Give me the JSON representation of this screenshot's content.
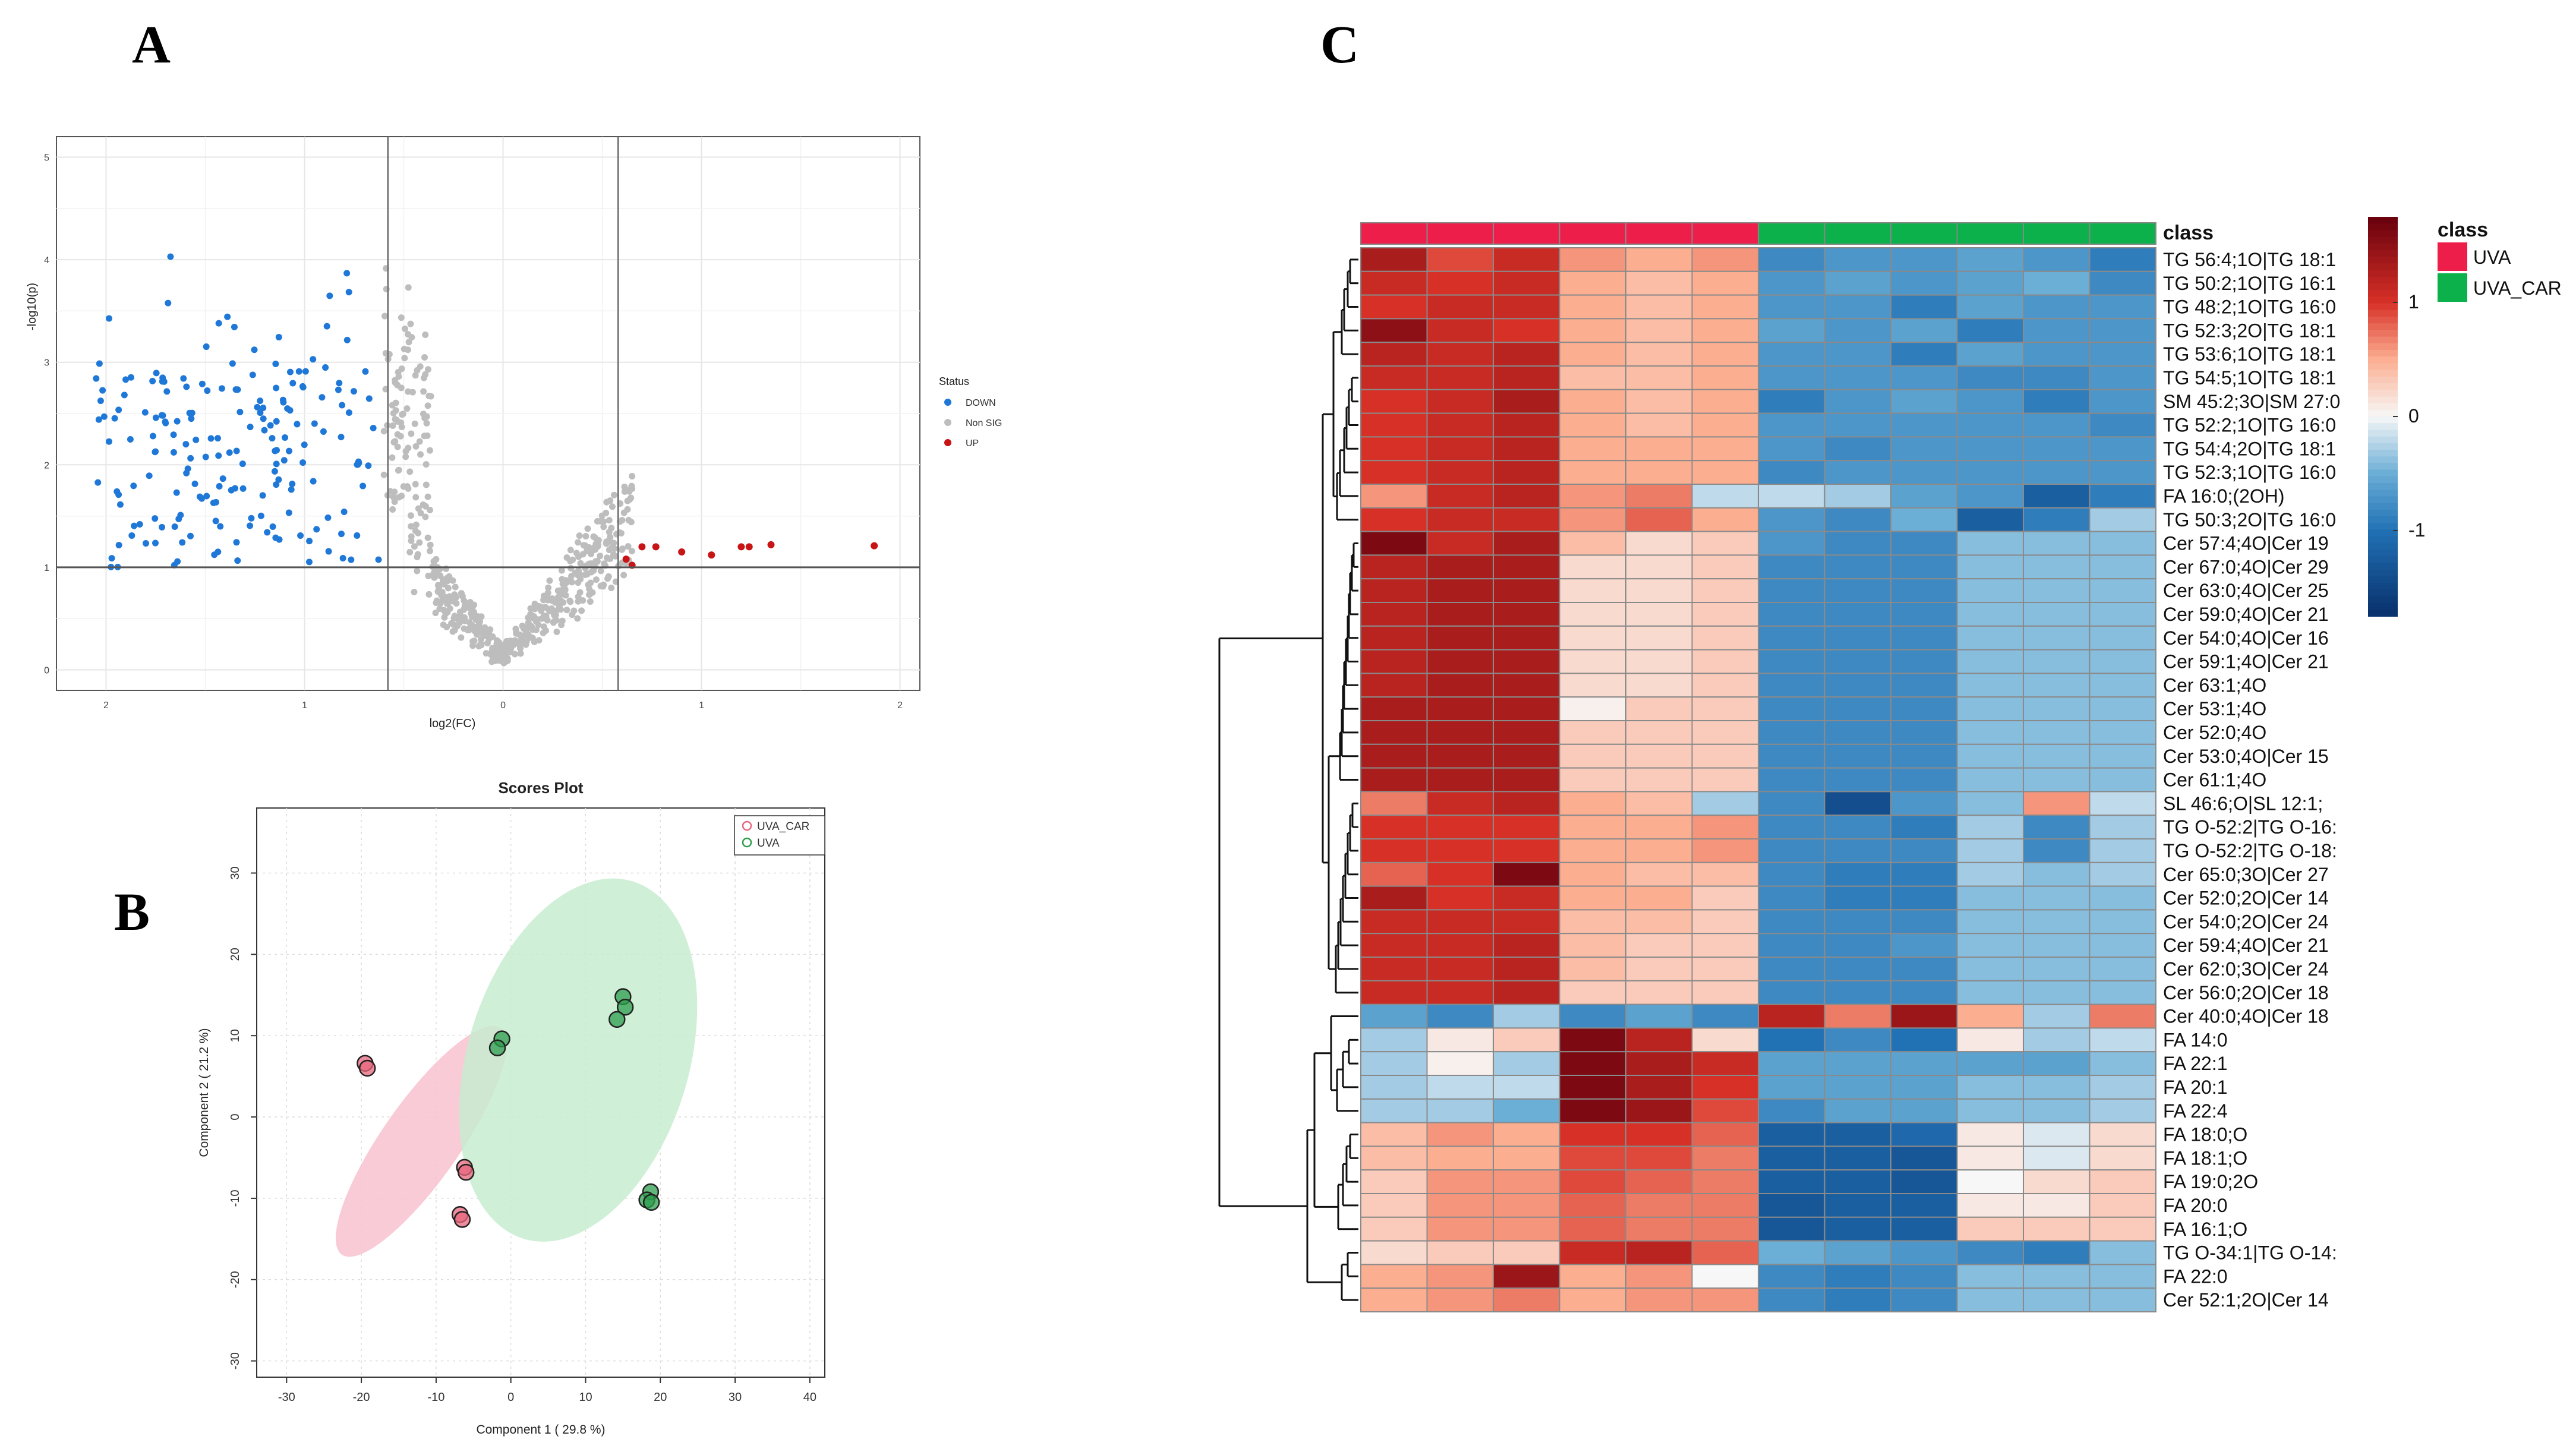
{
  "panels": {
    "a": "A",
    "b": "B",
    "c": "C"
  },
  "chart_data": [
    {
      "type": "scatter",
      "name": "volcano",
      "xlabel": "log2(FC)",
      "ylabel": "-log10(p)",
      "xlim": [
        -2.25,
        2.1
      ],
      "ylim": [
        -0.2,
        5.2
      ],
      "x_ticks": [
        -2,
        -1,
        0,
        1,
        2
      ],
      "x_tick_labels": [
        "2",
        "1",
        "0",
        "1",
        "2"
      ],
      "y_ticks": [
        0,
        1,
        2,
        3,
        4,
        5
      ],
      "y_tick_labels": [
        "0",
        "1",
        "2",
        "3",
        "4",
        "5"
      ],
      "thresholds": {
        "fc_low": -0.58,
        "fc_high": 0.58,
        "p": 1
      },
      "legend": {
        "title": "Status",
        "entries": [
          "DOWN",
          "Non SIG",
          "UP"
        ]
      },
      "colors": {
        "DOWN": "#1f78d8",
        "Non SIG": "#bdbdbd",
        "UP": "#c81414"
      },
      "up_points": [
        [
          0.62,
          1.08
        ],
        [
          0.65,
          1.02
        ],
        [
          0.7,
          1.2
        ],
        [
          0.77,
          1.2
        ],
        [
          0.9,
          1.15
        ],
        [
          1.05,
          1.12
        ],
        [
          1.2,
          1.2
        ],
        [
          1.24,
          1.2
        ],
        [
          1.35,
          1.22
        ],
        [
          1.87,
          1.21
        ]
      ],
      "down_seed": 7,
      "nonsig_seed": 11
    },
    {
      "type": "scatter",
      "name": "scores",
      "title": "Scores Plot",
      "xlabel": "Component 1 ( 29.8 %)",
      "ylabel": "Component 2 ( 21.2 %)",
      "xlim": [
        -34,
        42
      ],
      "ylim": [
        -32,
        38
      ],
      "x_ticks": [
        -30,
        -20,
        -10,
        0,
        10,
        20,
        30,
        40
      ],
      "y_ticks": [
        -30,
        -20,
        -10,
        0,
        10,
        20,
        30
      ],
      "legend": [
        "UVA_CAR",
        "UVA"
      ],
      "colors": {
        "UVA_CAR": "#e8677e",
        "UVA": "#2e9d4e",
        "UVA_CAR_fill": "#f8c2cf",
        "UVA_fill": "#c8ecd0"
      },
      "series": [
        {
          "name": "UVA_CAR",
          "points": [
            [
              -19.5,
              6.6
            ],
            [
              -19.2,
              6.0
            ],
            [
              -6.2,
              -6.2
            ],
            [
              -6.0,
              -6.8
            ],
            [
              -6.8,
              -12.0
            ],
            [
              -6.5,
              -12.6
            ]
          ]
        },
        {
          "name": "UVA",
          "points": [
            [
              -1.2,
              9.6
            ],
            [
              -1.8,
              8.5
            ],
            [
              15,
              14.8
            ],
            [
              15.3,
              13.5
            ],
            [
              14.2,
              12
            ],
            [
              18.7,
              -9.2
            ],
            [
              18.2,
              -10.2
            ],
            [
              18.8,
              -10.5
            ]
          ]
        }
      ],
      "ellipses": [
        {
          "name": "UVA_CAR",
          "cx": -12,
          "cy": -3,
          "rx": 18.5,
          "ry": 5.2,
          "angle_deg": -55
        },
        {
          "name": "UVA",
          "cx": 9,
          "cy": 7,
          "rx": 25,
          "ry": 14.8,
          "angle_deg": -73
        }
      ]
    },
    {
      "type": "heatmap",
      "name": "lipid-heatmap",
      "class_label": "class",
      "classes": [
        "UVA",
        "UVA",
        "UVA",
        "UVA",
        "UVA",
        "UVA",
        "UVA_CAR",
        "UVA_CAR",
        "UVA_CAR",
        "UVA_CAR",
        "UVA_CAR",
        "UVA_CAR"
      ],
      "class_colors": {
        "UVA": "#ee1e4b",
        "UVA_CAR": "#0db14b"
      },
      "legend": {
        "title": "class",
        "entries": [
          "UVA",
          "UVA_CAR"
        ]
      },
      "colorbar": {
        "ticks": [
          1,
          0,
          -1
        ],
        "tick_labels": [
          "1",
          "0",
          "-1"
        ],
        "range": [
          -1.75,
          1.75
        ]
      },
      "rows": [
        "TG 56:4;1O|TG 18:1",
        "TG 50:2;1O|TG 16:1",
        "TG 48:2;1O|TG 16:0",
        "TG 52:3;2O|TG 18:1",
        "TG 53:6;1O|TG 18:1",
        "TG 54:5;1O|TG 18:1",
        "SM 45:2;3O|SM 27:0",
        "TG 52:2;1O|TG 16:0",
        "TG 54:4;2O|TG 18:1",
        "TG 52:3;1O|TG 16:0",
        "FA 16:0;(2OH)",
        "TG 50:3;2O|TG 16:0",
        "Cer 57:4;4O|Cer 19",
        "Cer 67:0;4O|Cer 29",
        "Cer 63:0;4O|Cer 25",
        "Cer 59:0;4O|Cer 21",
        "Cer 54:0;4O|Cer 16",
        "Cer 59:1;4O|Cer 21",
        "Cer 63:1;4O",
        "Cer 53:1;4O",
        "Cer 52:0;4O",
        "Cer 53:0;4O|Cer 15",
        "Cer 61:1;4O",
        "SL 46:6;O|SL 12:1;",
        "TG O-52:2|TG O-16:",
        "TG O-52:2|TG O-18:",
        "Cer 65:0;3O|Cer 27",
        "Cer 52:0;2O|Cer 14",
        "Cer 54:0;2O|Cer 24",
        "Cer 59:4;4O|Cer 21",
        "Cer 62:0;3O|Cer 24",
        "Cer 56:0;2O|Cer 18",
        "Cer 40:0;4O|Cer 18",
        "FA 14:0",
        "FA 22:1",
        "FA 20:1",
        "FA 22:4",
        "FA 18:0;O",
        "FA 18:1;O",
        "FA 19:0;2O",
        "FA 20:0",
        "FA 16:1;O",
        "TG O-34:1|TG O-14:",
        "FA 22:0",
        "Cer 52:1;2O|Cer 14"
      ],
      "values": [
        [
          1.3,
          0.9,
          1.1,
          0.6,
          0.5,
          0.6,
          -0.8,
          -0.7,
          -0.7,
          -0.6,
          -0.7,
          -0.9
        ],
        [
          1.1,
          1.0,
          1.1,
          0.5,
          0.4,
          0.5,
          -0.7,
          -0.6,
          -0.7,
          -0.6,
          -0.5,
          -0.8
        ],
        [
          1.0,
          1.1,
          1.1,
          0.5,
          0.4,
          0.5,
          -0.7,
          -0.7,
          -0.9,
          -0.6,
          -0.7,
          -0.7
        ],
        [
          1.5,
          1.1,
          1.0,
          0.5,
          0.4,
          0.5,
          -0.6,
          -0.7,
          -0.6,
          -0.9,
          -0.7,
          -0.7
        ],
        [
          1.2,
          1.1,
          1.2,
          0.5,
          0.4,
          0.5,
          -0.7,
          -0.7,
          -0.9,
          -0.6,
          -0.7,
          -0.7
        ],
        [
          1.1,
          1.1,
          1.2,
          0.4,
          0.4,
          0.5,
          -0.7,
          -0.7,
          -0.7,
          -0.8,
          -0.8,
          -0.7
        ],
        [
          1.0,
          1.1,
          1.3,
          0.5,
          0.4,
          0.5,
          -0.9,
          -0.7,
          -0.6,
          -0.7,
          -0.9,
          -0.7
        ],
        [
          1.0,
          1.1,
          1.2,
          0.5,
          0.4,
          0.5,
          -0.7,
          -0.7,
          -0.7,
          -0.7,
          -0.7,
          -0.8
        ],
        [
          1.0,
          1.1,
          1.2,
          0.5,
          0.5,
          0.5,
          -0.7,
          -0.8,
          -0.7,
          -0.7,
          -0.7,
          -0.7
        ],
        [
          1.0,
          1.1,
          1.2,
          0.5,
          0.5,
          0.5,
          -0.8,
          -0.7,
          -0.7,
          -0.7,
          -0.7,
          -0.7
        ],
        [
          0.6,
          1.1,
          1.2,
          0.6,
          0.7,
          -0.2,
          -0.2,
          -0.3,
          -0.6,
          -0.7,
          -1.2,
          -0.9
        ],
        [
          1.0,
          1.1,
          1.1,
          0.6,
          0.8,
          0.5,
          -0.7,
          -0.8,
          -0.5,
          -1.2,
          -0.9,
          -0.3
        ],
        [
          1.6,
          1.1,
          1.3,
          0.4,
          0.2,
          0.3,
          -0.7,
          -0.8,
          -0.8,
          -0.4,
          -0.4,
          -0.4
        ],
        [
          1.2,
          1.3,
          1.3,
          0.2,
          0.2,
          0.3,
          -0.8,
          -0.8,
          -0.8,
          -0.4,
          -0.4,
          -0.4
        ],
        [
          1.2,
          1.3,
          1.3,
          0.2,
          0.2,
          0.3,
          -0.8,
          -0.8,
          -0.8,
          -0.4,
          -0.4,
          -0.4
        ],
        [
          1.2,
          1.3,
          1.3,
          0.2,
          0.2,
          0.3,
          -0.8,
          -0.8,
          -0.8,
          -0.4,
          -0.4,
          -0.4
        ],
        [
          1.2,
          1.3,
          1.3,
          0.2,
          0.2,
          0.3,
          -0.8,
          -0.8,
          -0.8,
          -0.4,
          -0.4,
          -0.4
        ],
        [
          1.2,
          1.3,
          1.3,
          0.2,
          0.2,
          0.3,
          -0.8,
          -0.8,
          -0.8,
          -0.4,
          -0.4,
          -0.4
        ],
        [
          1.2,
          1.3,
          1.3,
          0.2,
          0.2,
          0.3,
          -0.8,
          -0.8,
          -0.8,
          -0.4,
          -0.4,
          -0.4
        ],
        [
          1.3,
          1.3,
          1.3,
          0.05,
          0.3,
          0.3,
          -0.8,
          -0.8,
          -0.8,
          -0.4,
          -0.4,
          -0.4
        ],
        [
          1.3,
          1.3,
          1.3,
          0.3,
          0.3,
          0.3,
          -0.8,
          -0.8,
          -0.8,
          -0.4,
          -0.4,
          -0.4
        ],
        [
          1.3,
          1.3,
          1.3,
          0.3,
          0.3,
          0.3,
          -0.8,
          -0.8,
          -0.8,
          -0.4,
          -0.4,
          -0.4
        ],
        [
          1.3,
          1.3,
          1.3,
          0.3,
          0.3,
          0.3,
          -0.8,
          -0.8,
          -0.8,
          -0.4,
          -0.4,
          -0.4
        ],
        [
          0.7,
          1.1,
          1.2,
          0.5,
          0.4,
          -0.3,
          -0.8,
          -1.4,
          -0.7,
          -0.4,
          0.6,
          -0.2
        ],
        [
          1.0,
          1.0,
          1.0,
          0.5,
          0.5,
          0.6,
          -0.8,
          -0.8,
          -0.9,
          -0.3,
          -0.8,
          -0.3
        ],
        [
          1.0,
          1.0,
          1.0,
          0.5,
          0.5,
          0.6,
          -0.8,
          -0.8,
          -0.8,
          -0.3,
          -0.8,
          -0.3
        ],
        [
          0.8,
          1.0,
          1.6,
          0.5,
          0.4,
          0.4,
          -0.8,
          -0.9,
          -0.9,
          -0.3,
          -0.4,
          -0.3
        ],
        [
          1.3,
          1.0,
          1.1,
          0.5,
          0.5,
          0.3,
          -0.8,
          -0.9,
          -0.9,
          -0.4,
          -0.4,
          -0.4
        ],
        [
          1.1,
          1.1,
          1.1,
          0.4,
          0.4,
          0.3,
          -0.8,
          -0.8,
          -0.8,
          -0.4,
          -0.4,
          -0.4
        ],
        [
          1.1,
          1.1,
          1.2,
          0.4,
          0.3,
          0.3,
          -0.8,
          -0.8,
          -0.7,
          -0.4,
          -0.4,
          -0.4
        ],
        [
          1.1,
          1.1,
          1.2,
          0.4,
          0.3,
          0.3,
          -0.8,
          -0.8,
          -0.8,
          -0.4,
          -0.4,
          -0.4
        ],
        [
          1.1,
          1.1,
          1.2,
          0.3,
          0.3,
          0.3,
          -0.8,
          -0.8,
          -0.8,
          -0.4,
          -0.4,
          -0.4
        ],
        [
          -0.6,
          -0.8,
          -0.3,
          -0.8,
          -0.6,
          -0.8,
          1.2,
          0.7,
          1.4,
          0.5,
          -0.3,
          0.7
        ],
        [
          -0.3,
          0.1,
          0.3,
          1.6,
          1.2,
          0.2,
          -1.0,
          -0.8,
          -1.0,
          0.1,
          -0.3,
          -0.2
        ],
        [
          -0.3,
          0.05,
          -0.3,
          1.6,
          1.3,
          1.1,
          -0.6,
          -0.6,
          -0.6,
          -0.6,
          -0.6,
          -0.4
        ],
        [
          -0.3,
          -0.2,
          -0.2,
          1.6,
          1.3,
          1.0,
          -0.6,
          -0.6,
          -0.6,
          -0.4,
          -0.4,
          -0.3
        ],
        [
          -0.3,
          -0.3,
          -0.5,
          1.6,
          1.4,
          0.9,
          -0.8,
          -0.6,
          -0.6,
          -0.4,
          -0.4,
          -0.3
        ],
        [
          0.4,
          0.6,
          0.5,
          1.0,
          1.0,
          0.8,
          -1.2,
          -1.2,
          -1.1,
          0.1,
          -0.1,
          0.2
        ],
        [
          0.4,
          0.5,
          0.5,
          0.9,
          0.9,
          0.7,
          -1.2,
          -1.2,
          -1.3,
          0.1,
          -0.1,
          0.2
        ],
        [
          0.3,
          0.6,
          0.6,
          0.9,
          0.8,
          0.7,
          -1.2,
          -1.2,
          -1.3,
          0.0,
          0.2,
          0.3
        ],
        [
          0.3,
          0.6,
          0.6,
          0.8,
          0.7,
          0.7,
          -1.3,
          -1.2,
          -1.2,
          0.1,
          0.1,
          0.3
        ],
        [
          0.3,
          0.6,
          0.6,
          0.8,
          0.7,
          0.7,
          -1.3,
          -1.2,
          -1.2,
          0.3,
          0.3,
          0.3
        ],
        [
          0.2,
          0.3,
          0.3,
          1.1,
          1.2,
          0.8,
          -0.5,
          -0.6,
          -0.7,
          -0.8,
          -0.9,
          -0.4
        ],
        [
          0.5,
          0.6,
          1.4,
          0.5,
          0.6,
          0.0,
          -0.8,
          -0.9,
          -0.8,
          -0.4,
          -0.4,
          -0.4
        ],
        [
          0.5,
          0.6,
          0.7,
          0.5,
          0.6,
          0.6,
          -0.8,
          -0.9,
          -0.8,
          -0.4,
          -0.4,
          -0.4
        ]
      ],
      "dendrogram_note": "hierarchical clustering of rows"
    }
  ]
}
